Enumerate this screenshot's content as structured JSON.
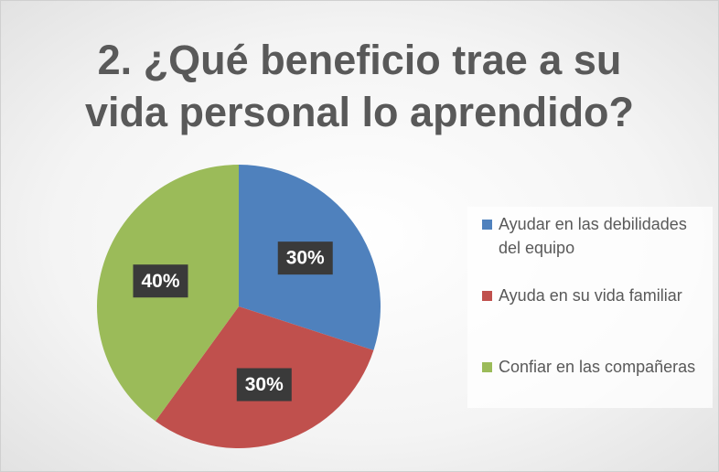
{
  "chart_data": {
    "type": "pie",
    "title": "2. ¿Qué beneficio trae a su vida personal lo aprendido?",
    "categories": [
      "Ayudar en las debilidades del equipo",
      "Ayuda en su vida familiar",
      "Confiar en las compañeras"
    ],
    "values": [
      30,
      30,
      40
    ],
    "value_labels": [
      "30%",
      "30%",
      "40%"
    ],
    "colors": [
      "#4f81bd",
      "#c0504d",
      "#9bbb59"
    ],
    "legend": "right"
  }
}
